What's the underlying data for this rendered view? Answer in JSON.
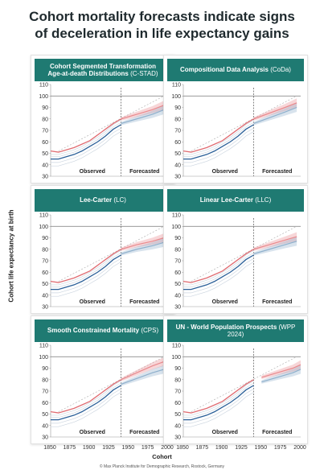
{
  "title_line1": "Cohort mortality forecasts indicate signs",
  "title_line2": "of deceleration in life expectancy gains",
  "y_axis_label": "Cohort life expectancy at birth",
  "x_axis_label": "Cohort",
  "credit": "© Max Planck Institute for Demographic Research, Rostock, Germany",
  "colors": {
    "header_bg": "#1f7a72",
    "female": "#e06c72",
    "male": "#2a5f98",
    "forecast_female": "#e88a8e",
    "forecast_male": "#8fb0cc",
    "other_countries": "#cdd6e0",
    "reference_line": "#777777"
  },
  "panels": [
    {
      "title": "Cohort Segmented Transformation Age-at-death Distributions",
      "title_lines": [
        "Cohort Segmented Transformation",
        "Age-at-death Distributions"
      ],
      "abbr": "(C-STAD)",
      "observed_label": "Observed",
      "forecasted_label": "Forecasted"
    },
    {
      "title": "Compositional Data Analysis",
      "title_lines": [
        "Compositional Data Analysis"
      ],
      "abbr": "(CoDa)",
      "observed_label": "Observed",
      "forecasted_label": "Forecasted"
    },
    {
      "title": "Lee-Carter",
      "title_lines": [
        "Lee-Carter"
      ],
      "abbr": "(LC)",
      "observed_label": "Observed",
      "forecasted_label": "Forecasted"
    },
    {
      "title": "Linear Lee-Carter",
      "title_lines": [
        "Linear Lee-Carter"
      ],
      "abbr": "(LLC)",
      "observed_label": "Observed",
      "forecasted_label": "Forecasted"
    },
    {
      "title": "Smooth Constrained Mortality",
      "title_lines": [
        "Smooth Constrained Mortality"
      ],
      "abbr": "(CPS)",
      "observed_label": "Observed",
      "forecasted_label": "Forecasted"
    },
    {
      "title": "UN - World Population Prospects",
      "title_lines": [
        "UN - World Population Prospects"
      ],
      "abbr": "(WPP 2024)",
      "observed_label": "Observed",
      "forecasted_label": "Forecasted"
    }
  ],
  "chart_data": {
    "type": "line",
    "x_label": "Cohort",
    "y_label": "Cohort life expectancy at birth",
    "xlim": [
      1850,
      2000
    ],
    "x_ticks": [
      1850,
      1875,
      1900,
      1925,
      1950,
      1975,
      2000
    ],
    "ylim": [
      30,
      110
    ],
    "y_ticks": [
      30,
      40,
      50,
      60,
      70,
      80,
      90,
      100,
      110
    ],
    "reference_y": 100,
    "forecast_start": 1940,
    "observed": {
      "female": {
        "x": [
          1850,
          1860,
          1870,
          1880,
          1890,
          1900,
          1910,
          1920,
          1930,
          1940
        ],
        "y": [
          52,
          51,
          53,
          55,
          58,
          61,
          66,
          71,
          76,
          80
        ]
      },
      "male": {
        "x": [
          1850,
          1860,
          1870,
          1880,
          1890,
          1900,
          1910,
          1920,
          1930,
          1940
        ],
        "y": [
          45,
          45,
          47,
          49,
          52,
          56,
          60,
          65,
          71,
          75
        ]
      }
    },
    "forecasts": [
      {
        "x": [
          1940,
          1960,
          1980,
          1995
        ],
        "female": [
          80,
          84,
          88,
          92
        ],
        "male": [
          76,
          80,
          84,
          88
        ]
      },
      {
        "x": [
          1940,
          1960,
          1980,
          1995
        ],
        "female": [
          80,
          85,
          90,
          94
        ],
        "male": [
          76,
          81,
          86,
          90
        ]
      },
      {
        "x": [
          1940,
          1960,
          1980,
          1995
        ],
        "female": [
          80,
          84,
          87,
          90
        ],
        "male": [
          76,
          80,
          83,
          86
        ]
      },
      {
        "x": [
          1940,
          1960,
          1980,
          1995
        ],
        "female": [
          80,
          84,
          88,
          91
        ],
        "male": [
          76,
          80,
          84,
          87
        ]
      },
      {
        "x": [
          1940,
          1960,
          1980,
          2000
        ],
        "female": [
          80,
          86,
          92,
          97
        ],
        "male": [
          76,
          81,
          86,
          90
        ]
      },
      {
        "x": [
          1950,
          1970,
          1990,
          2000
        ],
        "female": [
          82,
          86,
          90,
          93
        ],
        "male": [
          78,
          82,
          86,
          89
        ]
      }
    ]
  }
}
